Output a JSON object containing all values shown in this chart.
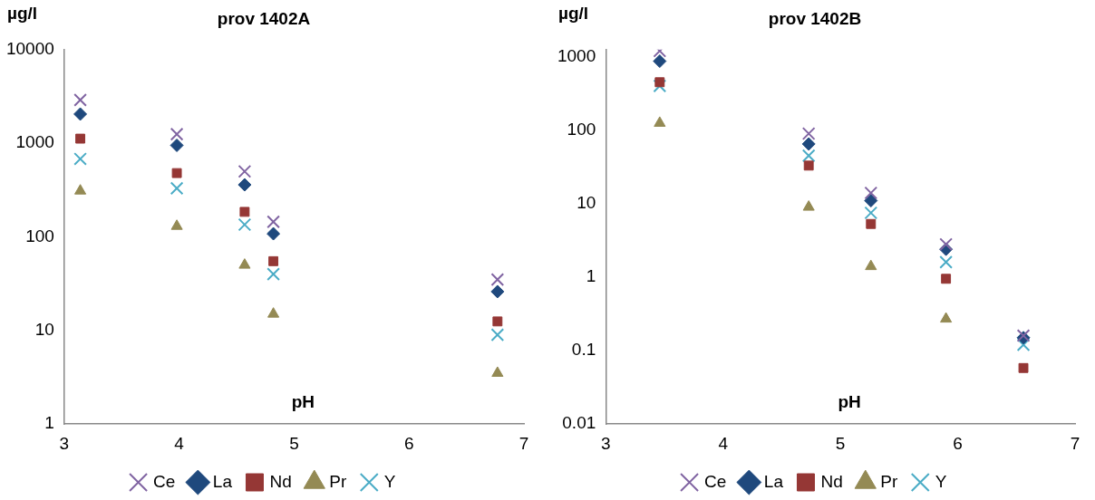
{
  "chart_data": [
    {
      "type": "scatter",
      "title": "prov 1402A",
      "xlabel": "pH",
      "ylabel": "µg/l",
      "log": "y",
      "legend": "bottom",
      "grid": false,
      "x": [
        3.14,
        3.98,
        4.57,
        4.82,
        6.77
      ],
      "xlim": [
        3,
        7
      ],
      "xticks": [
        3,
        4,
        5,
        6,
        7
      ],
      "ylim": [
        1,
        10000
      ],
      "yticks": [
        1,
        10,
        100,
        1000,
        10000
      ],
      "series": [
        {
          "name": "Ce",
          "color": "#8064a2",
          "marker": "cross",
          "values": [
            2900,
            1250,
            500,
            145,
            35
          ]
        },
        {
          "name": "La",
          "color": "#1f497d",
          "marker": "diamond",
          "values": [
            2050,
            950,
            360,
            108,
            26
          ]
        },
        {
          "name": "Nd",
          "color": "#953735",
          "marker": "square",
          "values": [
            1120,
            480,
            185,
            55,
            12.5
          ]
        },
        {
          "name": "Pr",
          "color": "#948a54",
          "marker": "triangle",
          "values": [
            310,
            130,
            50,
            15,
            3.5
          ]
        },
        {
          "name": "Y",
          "color": "#4bacc6",
          "marker": "cross",
          "values": [
            680,
            330,
            135,
            40,
            9
          ]
        }
      ]
    },
    {
      "type": "scatter",
      "title": "prov 1402B",
      "xlabel": "pH",
      "ylabel": "µg/l",
      "log": "y",
      "legend": "bottom",
      "grid": false,
      "x": [
        3.46,
        4.73,
        5.26,
        5.9,
        6.56
      ],
      "xlim": [
        3,
        7
      ],
      "xticks": [
        3,
        4,
        5,
        6,
        7
      ],
      "ylim": [
        0.01,
        1250
      ],
      "yticks": [
        0.01,
        0.1,
        1,
        10,
        100,
        1000
      ],
      "series": [
        {
          "name": "Ce",
          "color": "#8064a2",
          "marker": "cross",
          "values": [
            1200,
            90,
            14,
            2.8,
            0.16
          ]
        },
        {
          "name": "La",
          "color": "#1f497d",
          "marker": "diamond",
          "values": [
            870,
            65,
            11,
            2.4,
            0.15
          ]
        },
        {
          "name": "Nd",
          "color": "#953735",
          "marker": "square",
          "values": [
            450,
            33,
            5.3,
            0.95,
            0.058
          ]
        },
        {
          "name": "Pr",
          "color": "#948a54",
          "marker": "triangle",
          "values": [
            125,
            9,
            1.4,
            0.27,
            null
          ]
        },
        {
          "name": "Y",
          "color": "#4bacc6",
          "marker": "cross",
          "values": [
            400,
            45,
            7.5,
            1.6,
            0.12
          ]
        }
      ]
    }
  ]
}
